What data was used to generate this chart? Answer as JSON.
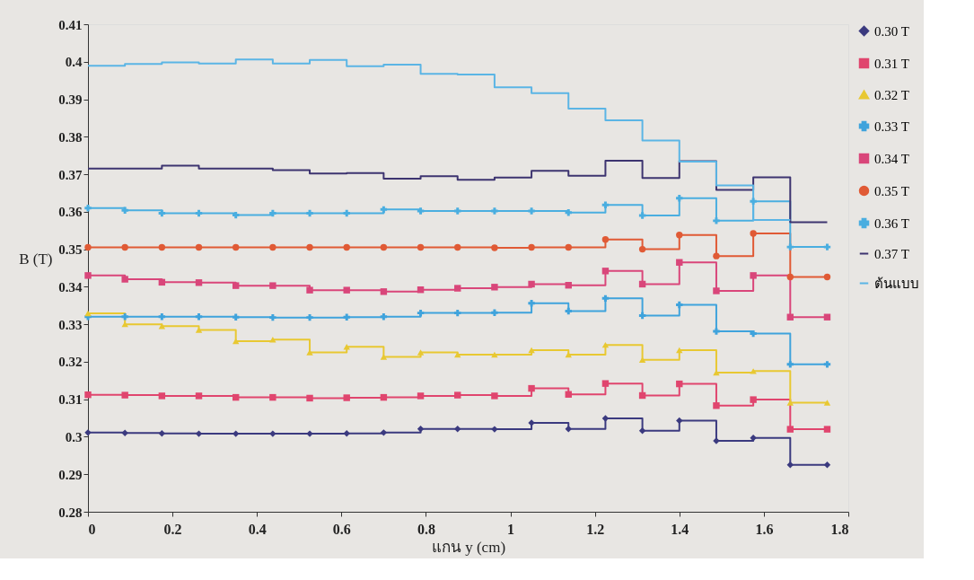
{
  "chart_data": {
    "type": "step",
    "xlabel": "แกน y (cm)",
    "ylabel": "B (T)",
    "legend": "right",
    "grid": false,
    "x": [
      0,
      0.0875,
      0.175,
      0.2625,
      0.35,
      0.4375,
      0.525,
      0.6125,
      0.7,
      0.7875,
      0.875,
      0.9625,
      1.05,
      1.1375,
      1.225,
      1.3125,
      1.4,
      1.4875,
      1.575,
      1.6625,
      1.75
    ],
    "xlim": [
      0,
      1.8
    ],
    "xticks": [
      0,
      0.2,
      0.4,
      0.6,
      0.8,
      1,
      1.2,
      1.4,
      1.6,
      1.8
    ],
    "ylim": [
      0.28,
      0.41
    ],
    "yticks": [
      0.28,
      0.29,
      0.3,
      0.31,
      0.32,
      0.33,
      0.34,
      0.35,
      0.36,
      0.37,
      0.38,
      0.39,
      0.4,
      0.41
    ],
    "series": [
      {
        "name": "0.30 T",
        "color": "#3b3a7f",
        "marker": "diamond",
        "values": [
          0.3011,
          0.301,
          0.3009,
          0.3008,
          0.3008,
          0.3008,
          0.3008,
          0.3009,
          0.3011,
          0.3021,
          0.3021,
          0.302,
          0.3037,
          0.3021,
          0.3049,
          0.3016,
          0.3043,
          0.2989,
          0.2997,
          0.2925,
          0.2925
        ]
      },
      {
        "name": "0.31 T",
        "color": "#e0456e",
        "marker": "square",
        "values": [
          0.3112,
          0.3111,
          0.3109,
          0.3109,
          0.3105,
          0.3105,
          0.3103,
          0.3104,
          0.3105,
          0.3109,
          0.3111,
          0.3109,
          0.3129,
          0.3113,
          0.3142,
          0.311,
          0.3141,
          0.3083,
          0.3099,
          0.302,
          0.302
        ]
      },
      {
        "name": "0.32 T",
        "color": "#e8c832",
        "marker": "triangle",
        "values": [
          0.3329,
          0.33,
          0.3295,
          0.3285,
          0.3255,
          0.3259,
          0.3225,
          0.324,
          0.3213,
          0.3225,
          0.3219,
          0.3219,
          0.3231,
          0.3219,
          0.3245,
          0.3205,
          0.3231,
          0.3171,
          0.3175,
          0.3091,
          0.3091
        ]
      },
      {
        "name": "0.33 T",
        "color": "#3fa3dc",
        "marker": "cross",
        "values": [
          0.332,
          0.332,
          0.332,
          0.332,
          0.3319,
          0.3318,
          0.3318,
          0.3319,
          0.332,
          0.333,
          0.333,
          0.3331,
          0.3356,
          0.3335,
          0.3369,
          0.3323,
          0.3352,
          0.3281,
          0.3275,
          0.3193,
          0.3193
        ]
      },
      {
        "name": "0.34 T",
        "color": "#d9467a",
        "marker": "square",
        "values": [
          0.343,
          0.342,
          0.3412,
          0.3411,
          0.3403,
          0.3403,
          0.3391,
          0.3391,
          0.3387,
          0.3392,
          0.3396,
          0.3399,
          0.3407,
          0.3404,
          0.3442,
          0.3407,
          0.3465,
          0.3389,
          0.343,
          0.3319,
          0.3319
        ]
      },
      {
        "name": "0.35 T",
        "color": "#e05a35",
        "marker": "circle",
        "values": [
          0.3505,
          0.3505,
          0.3505,
          0.3505,
          0.3505,
          0.3505,
          0.3505,
          0.3505,
          0.3505,
          0.3505,
          0.3505,
          0.3504,
          0.3505,
          0.3505,
          0.3526,
          0.35,
          0.3538,
          0.3482,
          0.3542,
          0.3426,
          0.3426
        ]
      },
      {
        "name": "0.36 T",
        "color": "#4aaee0",
        "marker": "cross",
        "values": [
          0.361,
          0.3604,
          0.3596,
          0.3596,
          0.3591,
          0.3596,
          0.3596,
          0.3596,
          0.3606,
          0.3602,
          0.3602,
          0.3602,
          0.3602,
          0.3598,
          0.3618,
          0.359,
          0.3636,
          0.3576,
          0.3628,
          0.3506,
          0.3506
        ]
      },
      {
        "name": "0.37 T",
        "color": "#3d3470",
        "marker": "none",
        "values": [
          0.3715,
          0.3715,
          0.3723,
          0.3715,
          0.3715,
          0.3711,
          0.3702,
          0.3703,
          0.3688,
          0.3695,
          0.3685,
          0.3691,
          0.3709,
          0.3696,
          0.3736,
          0.369,
          0.3735,
          0.3658,
          0.3692,
          0.3572,
          0.3572
        ]
      },
      {
        "name": "ต้นแบบ",
        "color": "#5bb5e5",
        "marker": "none",
        "values": [
          0.3989,
          0.3994,
          0.3998,
          0.3995,
          0.4006,
          0.3995,
          0.4005,
          0.3988,
          0.3992,
          0.3968,
          0.3966,
          0.3932,
          0.3916,
          0.3875,
          0.3844,
          0.379,
          0.3734,
          0.367,
          0.3578,
          0.3578,
          null
        ]
      }
    ]
  }
}
